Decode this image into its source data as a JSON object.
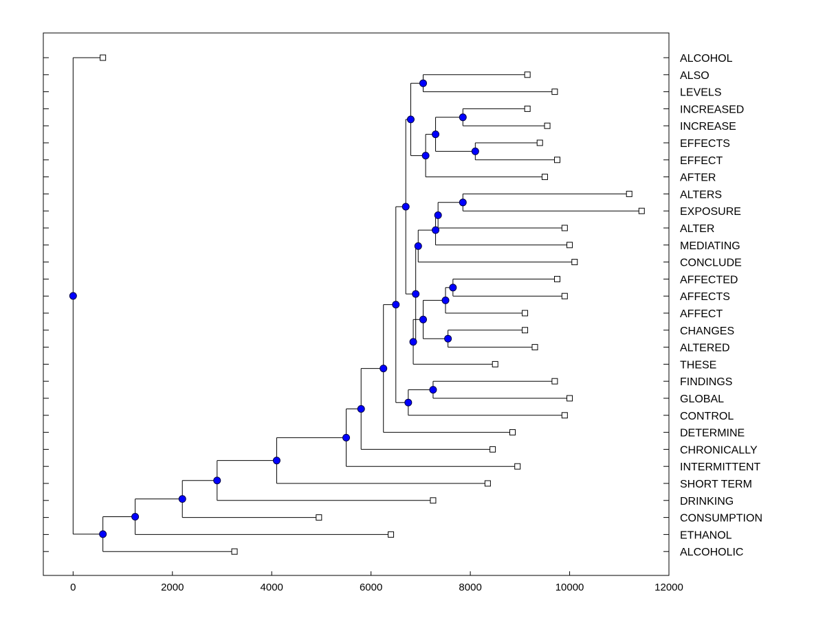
{
  "chart_data": {
    "type": "dendrogram",
    "title": "",
    "xlabel": "",
    "ylabel": "",
    "orientation": "horizontal",
    "label_side": "right",
    "xlim": [
      -600,
      12000
    ],
    "xticks": [
      0,
      2000,
      4000,
      6000,
      8000,
      10000,
      12000
    ],
    "xtick_labels": [
      "0",
      "2000",
      "4000",
      "6000",
      "8000",
      "10000",
      "12000"
    ],
    "grid": false,
    "colors": {
      "node_fill": "#0000ff",
      "node_stroke": "#000044",
      "leaf_fill": "#ffffff",
      "line": "#000000"
    },
    "leaves": [
      {
        "id": "L0",
        "label": "ALCOHOL",
        "x": 600
      },
      {
        "id": "L1",
        "label": "ALSO",
        "x": 9150
      },
      {
        "id": "L2",
        "label": "LEVELS",
        "x": 9700
      },
      {
        "id": "L3",
        "label": "INCREASED",
        "x": 9150
      },
      {
        "id": "L4",
        "label": "INCREASE",
        "x": 9550
      },
      {
        "id": "L5",
        "label": "EFFECTS",
        "x": 9400
      },
      {
        "id": "L6",
        "label": "EFFECT",
        "x": 9750
      },
      {
        "id": "L7",
        "label": "AFTER",
        "x": 9500
      },
      {
        "id": "L8",
        "label": "ALTERS",
        "x": 11200
      },
      {
        "id": "L9",
        "label": "EXPOSURE",
        "x": 11450
      },
      {
        "id": "L10",
        "label": "ALTER",
        "x": 9900
      },
      {
        "id": "L11",
        "label": "MEDIATING",
        "x": 10000
      },
      {
        "id": "L12",
        "label": "CONCLUDE",
        "x": 10100
      },
      {
        "id": "L13",
        "label": "AFFECTED",
        "x": 9750
      },
      {
        "id": "L14",
        "label": "AFFECTS",
        "x": 9900
      },
      {
        "id": "L15",
        "label": "AFFECT",
        "x": 9100
      },
      {
        "id": "L16",
        "label": "CHANGES",
        "x": 9100
      },
      {
        "id": "L17",
        "label": "ALTERED",
        "x": 9300
      },
      {
        "id": "L18",
        "label": "THESE",
        "x": 8500
      },
      {
        "id": "L19",
        "label": "FINDINGS",
        "x": 9700
      },
      {
        "id": "L20",
        "label": "GLOBAL",
        "x": 10000
      },
      {
        "id": "L21",
        "label": "CONTROL",
        "x": 9900
      },
      {
        "id": "L22",
        "label": "DETERMINE",
        "x": 8850
      },
      {
        "id": "L23",
        "label": "CHRONICALLY",
        "x": 8450
      },
      {
        "id": "L24",
        "label": "INTERMITTENT",
        "x": 8950
      },
      {
        "id": "L25",
        "label": "SHORT TERM",
        "x": 8350
      },
      {
        "id": "L26",
        "label": "DRINKING",
        "x": 7250
      },
      {
        "id": "L27",
        "label": "CONSUMPTION",
        "x": 4950
      },
      {
        "id": "L28",
        "label": "ETHANOL",
        "x": 6400
      },
      {
        "id": "L29",
        "label": "ALCOHOLIC",
        "x": 3250
      }
    ],
    "merges": [
      {
        "id": "N_also_levels",
        "x": 7050,
        "children": [
          "L1",
          "L2"
        ]
      },
      {
        "id": "N_incr",
        "x": 7850,
        "children": [
          "L3",
          "L4"
        ]
      },
      {
        "id": "N_eff",
        "x": 8100,
        "children": [
          "L5",
          "L6"
        ]
      },
      {
        "id": "N_incr_eff",
        "x": 7300,
        "children": [
          "N_incr",
          "N_eff"
        ]
      },
      {
        "id": "N_incr_eff_after",
        "x": 7100,
        "children": [
          "N_incr_eff",
          "L7"
        ]
      },
      {
        "id": "N_top",
        "x": 6800,
        "children": [
          "N_also_levels",
          "N_incr_eff_after"
        ]
      },
      {
        "id": "N_alters_exp",
        "x": 7850,
        "children": [
          "L8",
          "L9"
        ]
      },
      {
        "id": "N_alters_alter",
        "x": 7350,
        "children": [
          "N_alters_exp",
          "L10"
        ]
      },
      {
        "id": "N_mediating",
        "x": 7300,
        "children": [
          "N_alters_alter",
          "L11"
        ]
      },
      {
        "id": "N_conclude",
        "x": 6950,
        "children": [
          "N_mediating",
          "L12"
        ]
      },
      {
        "id": "N_affected_affects",
        "x": 7650,
        "children": [
          "L13",
          "L14"
        ]
      },
      {
        "id": "N_affect",
        "x": 7500,
        "children": [
          "N_affected_affects",
          "L15"
        ]
      },
      {
        "id": "N_changes_altered",
        "x": 7550,
        "children": [
          "L16",
          "L17"
        ]
      },
      {
        "id": "N_affect_group",
        "x": 7050,
        "children": [
          "N_affect",
          "N_changes_altered"
        ]
      },
      {
        "id": "N_affect_these",
        "x": 6850,
        "children": [
          "N_affect_group",
          "L18"
        ]
      },
      {
        "id": "N_mid",
        "x": 6900,
        "children": [
          "N_conclude",
          "N_affect_these"
        ]
      },
      {
        "id": "N_upper",
        "x": 6700,
        "children": [
          "N_top",
          "N_mid"
        ]
      },
      {
        "id": "N_findings_global",
        "x": 7250,
        "children": [
          "L19",
          "L20"
        ]
      },
      {
        "id": "N_control",
        "x": 6750,
        "children": [
          "N_findings_global",
          "L21"
        ]
      },
      {
        "id": "N_upper_control",
        "x": 6500,
        "children": [
          "N_upper",
          "N_control"
        ]
      },
      {
        "id": "N_determine",
        "x": 6250,
        "children": [
          "N_upper_control",
          "L22"
        ]
      },
      {
        "id": "N_chronically",
        "x": 5800,
        "children": [
          "N_determine",
          "L23"
        ]
      },
      {
        "id": "N_intermittent",
        "x": 5500,
        "children": [
          "N_chronically",
          "L24"
        ]
      },
      {
        "id": "N_shortterm",
        "x": 4100,
        "children": [
          "N_intermittent",
          "L25"
        ]
      },
      {
        "id": "N_drinking",
        "x": 2900,
        "children": [
          "N_shortterm",
          "L26"
        ]
      },
      {
        "id": "N_consumption",
        "x": 2200,
        "children": [
          "N_drinking",
          "L27"
        ]
      },
      {
        "id": "N_ethanol",
        "x": 1250,
        "children": [
          "N_consumption",
          "L28"
        ]
      },
      {
        "id": "N_alcoholic",
        "x": 600,
        "children": [
          "N_ethanol",
          "L29"
        ]
      },
      {
        "id": "N_root",
        "x": 0,
        "children": [
          "L0",
          "N_alcoholic"
        ]
      }
    ]
  }
}
